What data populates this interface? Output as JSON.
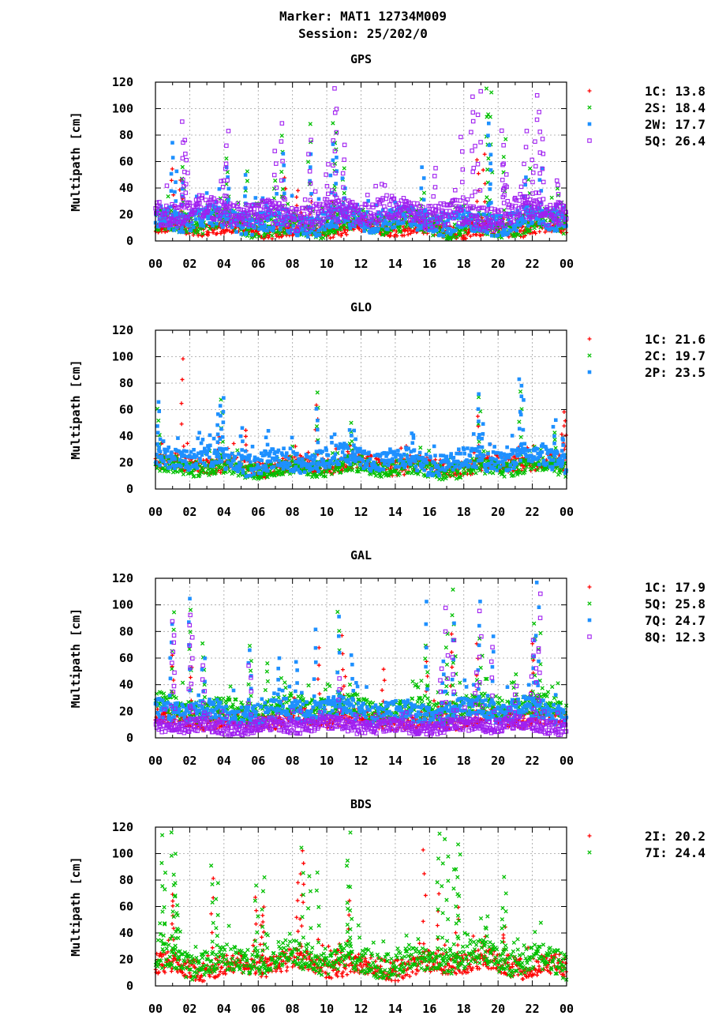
{
  "header": {
    "line1": "Marker: MAT1 12734M009",
    "line2": "Session: 25/202/0"
  },
  "chart_data": [
    {
      "type": "scatter",
      "title": "GPS",
      "ylabel": "Multipath [cm]",
      "xlabel": "",
      "ylim": [
        0,
        120
      ],
      "xlim": [
        0,
        24
      ],
      "yticks": [
        "0",
        "20",
        "40",
        "60",
        "80",
        "100",
        "120"
      ],
      "xticks": [
        "00",
        "02",
        "04",
        "06",
        "08",
        "10",
        "12",
        "14",
        "16",
        "18",
        "20",
        "22",
        "00"
      ],
      "grid": true,
      "legend_position": "right",
      "series": [
        {
          "name": "1C",
          "legend": "1C: 13.8",
          "color": "#ff0000",
          "marker": "plus",
          "base": 9,
          "spread": 5,
          "spikes": [
            [
              1.0,
              57
            ],
            [
              1.5,
              48
            ],
            [
              7.5,
              50
            ],
            [
              8.3,
              40
            ],
            [
              9.1,
              45
            ],
            [
              10.4,
              35
            ],
            [
              18.8,
              62
            ],
            [
              19.2,
              68
            ],
            [
              21.5,
              30
            ]
          ]
        },
        {
          "name": "2S",
          "legend": "2S: 18.4",
          "color": "#00c000",
          "marker": "x",
          "base": 13,
          "spread": 8,
          "spikes": [
            [
              1.6,
              58
            ],
            [
              4.2,
              63
            ],
            [
              5.3,
              55
            ],
            [
              7.0,
              48
            ],
            [
              7.4,
              82
            ],
            [
              9.0,
              91
            ],
            [
              10.4,
              90
            ],
            [
              10.5,
              84
            ],
            [
              11.0,
              55
            ],
            [
              15.6,
              38
            ],
            [
              19.4,
              117
            ],
            [
              19.4,
              97
            ],
            [
              19.6,
              115
            ],
            [
              20.4,
              79
            ],
            [
              21.8,
              55
            ],
            [
              23.5,
              40
            ]
          ]
        },
        {
          "name": "2W",
          "legend": "2W: 17.7",
          "color": "#1e90ff",
          "marker": "square",
          "base": 15,
          "spread": 8,
          "spikes": [
            [
              1.0,
              75
            ],
            [
              1.2,
              53
            ],
            [
              1.6,
              47
            ],
            [
              4.2,
              57
            ],
            [
              5.3,
              50
            ],
            [
              6.5,
              30
            ],
            [
              7.5,
              68
            ],
            [
              9.1,
              67
            ],
            [
              10.3,
              75
            ],
            [
              10.5,
              65
            ],
            [
              11.0,
              48
            ],
            [
              15.6,
              57
            ],
            [
              19.5,
              90
            ],
            [
              19.5,
              80
            ],
            [
              21.6,
              50
            ],
            [
              22.5,
              55
            ],
            [
              23.4,
              30
            ]
          ]
        },
        {
          "name": "5Q",
          "legend": "5Q: 26.4",
          "color": "#a020f0",
          "marker": "open-square",
          "base": 21,
          "spread": 9,
          "spikes": [
            [
              1.6,
              91
            ],
            [
              1.7,
              78
            ],
            [
              1.8,
              62
            ],
            [
              4.0,
              55
            ],
            [
              4.2,
              86
            ],
            [
              7.0,
              70
            ],
            [
              7.4,
              90
            ],
            [
              9.0,
              78
            ],
            [
              10.0,
              58
            ],
            [
              10.4,
              117
            ],
            [
              10.5,
              100
            ],
            [
              11.0,
              75
            ],
            [
              16.3,
              58
            ],
            [
              17.9,
              80
            ],
            [
              18.5,
              100
            ],
            [
              18.6,
              110
            ],
            [
              18.9,
              115
            ],
            [
              20.3,
              86
            ],
            [
              20.4,
              60
            ],
            [
              21.6,
              85
            ],
            [
              22.0,
              62
            ],
            [
              22.2,
              112
            ],
            [
              22.4,
              100
            ],
            [
              22.6,
              80
            ],
            [
              23.5,
              48
            ]
          ]
        }
      ]
    },
    {
      "type": "scatter",
      "title": "GLO",
      "ylabel": "Multipath [cm]",
      "xlabel": "",
      "ylim": [
        0,
        120
      ],
      "xlim": [
        0,
        24
      ],
      "yticks": [
        "0",
        "20",
        "40",
        "60",
        "80",
        "100",
        "120"
      ],
      "xticks": [
        "00",
        "02",
        "04",
        "06",
        "08",
        "10",
        "12",
        "14",
        "16",
        "18",
        "20",
        "22",
        "00"
      ],
      "grid": true,
      "legend_position": "right",
      "series": [
        {
          "name": "1C",
          "legend": "1C: 21.6",
          "color": "#ff0000",
          "marker": "plus",
          "base": 18,
          "spread": 6,
          "spikes": [
            [
              1.6,
              100
            ],
            [
              3.7,
              40
            ],
            [
              5.3,
              46
            ],
            [
              9.4,
              65
            ],
            [
              11.5,
              30
            ],
            [
              18.9,
              56
            ],
            [
              21.0,
              30
            ],
            [
              23.9,
              60
            ],
            [
              23.8,
              50
            ]
          ]
        },
        {
          "name": "2C",
          "legend": "2C: 19.7",
          "color": "#00c000",
          "marker": "x",
          "base": 16,
          "spread": 6,
          "spikes": [
            [
              0.2,
              62
            ],
            [
              3.9,
              70
            ],
            [
              9.4,
              73
            ],
            [
              11.5,
              51
            ],
            [
              18.9,
              72
            ],
            [
              21.3,
              75
            ],
            [
              23.3,
              45
            ]
          ]
        },
        {
          "name": "2P",
          "legend": "2P: 23.5",
          "color": "#1e90ff",
          "marker": "square",
          "base": 22,
          "spread": 8,
          "spikes": [
            [
              0.2,
              68
            ],
            [
              3.8,
              65
            ],
            [
              3.9,
              70
            ],
            [
              3.7,
              57
            ],
            [
              5.0,
              47
            ],
            [
              6.5,
              45
            ],
            [
              9.4,
              61
            ],
            [
              11.6,
              45
            ],
            [
              15.0,
              45
            ],
            [
              18.9,
              73
            ],
            [
              19.1,
              50
            ],
            [
              21.3,
              83
            ],
            [
              21.4,
              80
            ],
            [
              23.3,
              54
            ],
            [
              23.8,
              38
            ]
          ]
        }
      ]
    },
    {
      "type": "scatter",
      "title": "GAL",
      "ylabel": "Multipath [cm]",
      "xlabel": "",
      "ylim": [
        0,
        120
      ],
      "xlim": [
        0,
        24
      ],
      "yticks": [
        "0",
        "20",
        "40",
        "60",
        "80",
        "100",
        "120"
      ],
      "xticks": [
        "00",
        "02",
        "04",
        "06",
        "08",
        "10",
        "12",
        "14",
        "16",
        "18",
        "20",
        "22",
        "00"
      ],
      "grid": true,
      "legend_position": "right",
      "series": [
        {
          "name": "1C",
          "legend": "1C: 17.9",
          "color": "#ff0000",
          "marker": "plus",
          "base": 14,
          "spread": 6,
          "spikes": [
            [
              1.0,
              65
            ],
            [
              2.1,
              55
            ],
            [
              9.5,
              68
            ],
            [
              10.9,
              78
            ],
            [
              11.0,
              48
            ],
            [
              13.3,
              52
            ],
            [
              15.8,
              70
            ],
            [
              17.3,
              80
            ],
            [
              18.8,
              73
            ],
            [
              22.0,
              72
            ]
          ]
        },
        {
          "name": "5Q",
          "legend": "5Q: 25.8",
          "color": "#00c000",
          "marker": "x",
          "base": 22,
          "spread": 8,
          "spikes": [
            [
              1.0,
              97
            ],
            [
              2.0,
              97
            ],
            [
              2.8,
              72
            ],
            [
              5.5,
              70
            ],
            [
              6.5,
              58
            ],
            [
              10.7,
              97
            ],
            [
              15.8,
              70
            ],
            [
              17.0,
              80
            ],
            [
              17.4,
              113
            ],
            [
              17.5,
              88
            ],
            [
              19.0,
              75
            ],
            [
              21.0,
              50
            ],
            [
              22.1,
              88
            ],
            [
              22.4,
              80
            ]
          ]
        },
        {
          "name": "7Q",
          "legend": "7Q: 24.7",
          "color": "#1e90ff",
          "marker": "square",
          "base": 20,
          "spread": 8,
          "spikes": [
            [
              0.9,
              88
            ],
            [
              2.0,
              106
            ],
            [
              2.8,
              62
            ],
            [
              5.5,
              66
            ],
            [
              7.2,
              62
            ],
            [
              8.2,
              60
            ],
            [
              9.3,
              83
            ],
            [
              10.7,
              94
            ],
            [
              11.5,
              65
            ],
            [
              15.8,
              104
            ],
            [
              16.8,
              58
            ],
            [
              17.4,
              87
            ],
            [
              18.9,
              104
            ],
            [
              19.7,
              77
            ],
            [
              22.3,
              118
            ],
            [
              22.1,
              75
            ]
          ]
        },
        {
          "name": "8Q",
          "legend": "8Q: 12.3",
          "color": "#a020f0",
          "marker": "open-square",
          "base": 9,
          "spread": 5,
          "spikes": [
            [
              1.0,
              90
            ],
            [
              1.1,
              80
            ],
            [
              2.1,
              95
            ],
            [
              2.0,
              85
            ],
            [
              2.8,
              55
            ],
            [
              5.5,
              55
            ],
            [
              10.7,
              45
            ],
            [
              16.7,
              55
            ],
            [
              17.0,
              100
            ],
            [
              17.4,
              75
            ],
            [
              18.7,
              50
            ],
            [
              19.0,
              96
            ],
            [
              19.7,
              70
            ],
            [
              22.0,
              75
            ],
            [
              22.4,
              111
            ],
            [
              22.3,
              66
            ],
            [
              21.0,
              40
            ]
          ]
        }
      ]
    },
    {
      "type": "scatter",
      "title": "BDS",
      "ylabel": "Multipath [cm]",
      "xlabel": "",
      "ylim": [
        0,
        120
      ],
      "xlim": [
        0,
        24
      ],
      "yticks": [
        "0",
        "20",
        "40",
        "60",
        "80",
        "100",
        "120"
      ],
      "xticks": [
        "00",
        "02",
        "04",
        "06",
        "08",
        "10",
        "12",
        "14",
        "16",
        "18",
        "20",
        "22",
        "00"
      ],
      "grid": true,
      "legend_position": "right",
      "series": [
        {
          "name": "2I",
          "legend": "2I: 20.2",
          "color": "#ff0000",
          "marker": "plus",
          "base": 16,
          "spread": 8,
          "spikes": [
            [
              1.0,
              72
            ],
            [
              1.1,
              65
            ],
            [
              3.3,
              82
            ],
            [
              5.8,
              68
            ],
            [
              6.2,
              55
            ],
            [
              6.3,
              60
            ],
            [
              8.3,
              80
            ],
            [
              8.5,
              105
            ],
            [
              8.6,
              95
            ],
            [
              10.6,
              30
            ],
            [
              11.3,
              65
            ],
            [
              15.7,
              105
            ],
            [
              16.5,
              70
            ],
            [
              17.6,
              60
            ],
            [
              19.2,
              40
            ],
            [
              20.4,
              45
            ]
          ]
        },
        {
          "name": "7I",
          "legend": "7I: 24.4",
          "color": "#00c000",
          "marker": "x",
          "base": 20,
          "spread": 10,
          "spikes": [
            [
              0.4,
              114
            ],
            [
              0.5,
              87
            ],
            [
              1.0,
              118
            ],
            [
              1.1,
              102
            ],
            [
              1.2,
              80
            ],
            [
              1.3,
              62
            ],
            [
              3.3,
              93
            ],
            [
              3.6,
              80
            ],
            [
              5.9,
              77
            ],
            [
              6.3,
              85
            ],
            [
              8.6,
              105
            ],
            [
              9.0,
              85
            ],
            [
              9.5,
              88
            ],
            [
              11.3,
              116
            ],
            [
              11.2,
              92
            ],
            [
              11.4,
              60
            ],
            [
              16.5,
              118
            ],
            [
              16.8,
              113
            ],
            [
              17.0,
              98
            ],
            [
              17.6,
              107
            ],
            [
              17.7,
              100
            ],
            [
              17.5,
              88
            ],
            [
              19.3,
              53
            ],
            [
              20.4,
              83
            ],
            [
              20.3,
              60
            ]
          ]
        }
      ]
    }
  ]
}
